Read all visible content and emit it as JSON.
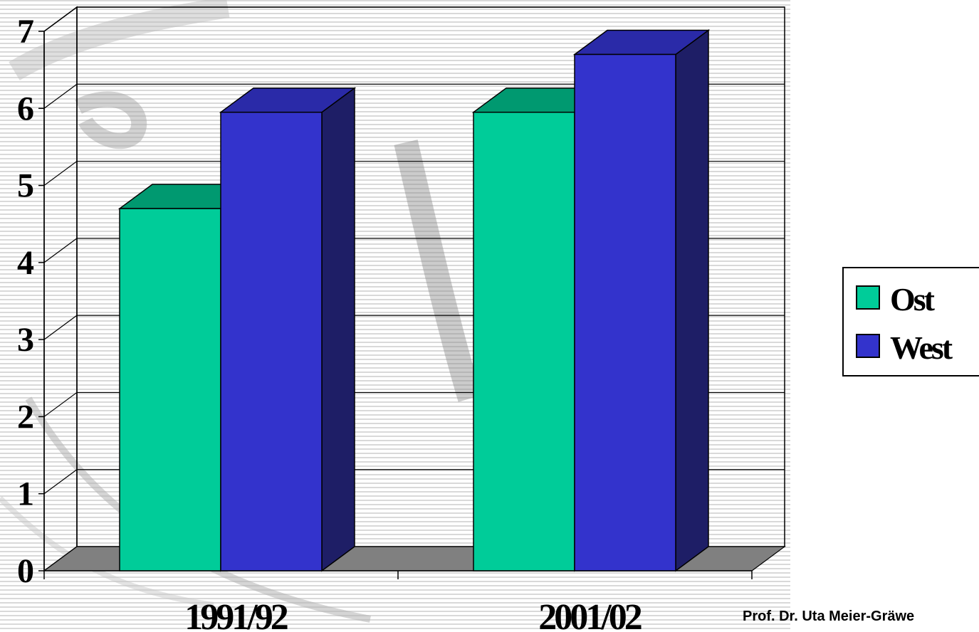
{
  "chart_data": {
    "type": "bar",
    "categories": [
      "1991/92",
      "2001/02"
    ],
    "series": [
      {
        "name": "Ost",
        "values": [
          4.7,
          5.95
        ]
      },
      {
        "name": "West",
        "values": [
          5.95,
          6.7
        ]
      }
    ],
    "ylim": [
      0,
      7
    ],
    "yticks": [
      "0",
      "1",
      "2",
      "3",
      "4",
      "5",
      "6",
      "7"
    ],
    "grid": true,
    "legend_position": "right",
    "three_d": true
  },
  "colors": {
    "ost_front": "#00CC99",
    "ost_top": "#009970",
    "west_front": "#3333CC",
    "west_top": "#2A2AA8",
    "west_side": "#1E1E66",
    "floor": "#808080"
  },
  "credit": "Prof. Dr. Uta Meier-Gräwe"
}
